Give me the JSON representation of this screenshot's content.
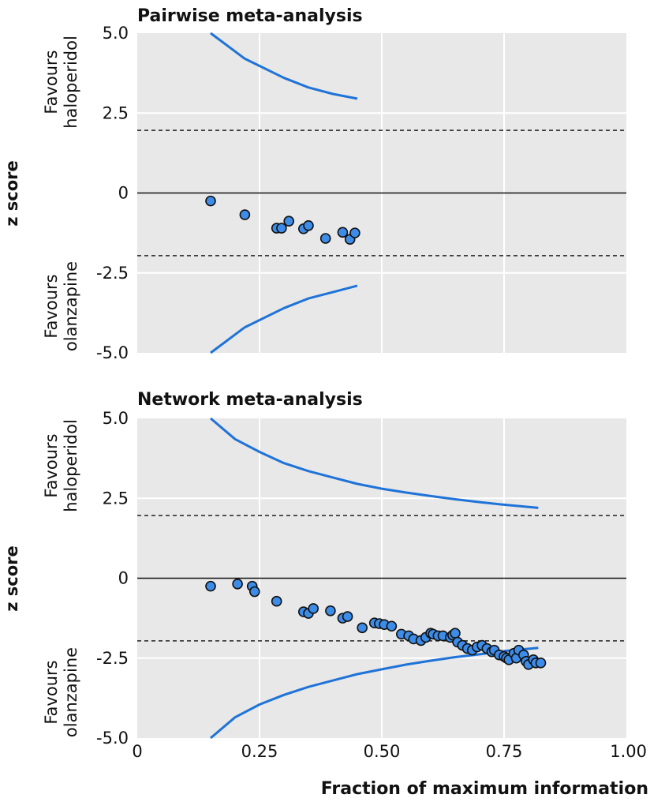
{
  "chart_data": [
    {
      "type": "scatter",
      "title": "Pairwise meta-analysis",
      "ylabel": "z score",
      "upper_annotation": [
        "Favours",
        "haloperidol"
      ],
      "lower_annotation": [
        "Favours",
        "olanzapine"
      ],
      "ylim": [
        -5.0,
        5.0
      ],
      "xlim": [
        0,
        1.0
      ],
      "y_ticks": [
        5.0,
        2.5,
        0,
        -2.5,
        -5.0
      ],
      "y_tick_labels": [
        "5.0",
        "2.5",
        "0",
        "-2.5",
        "-5.0"
      ],
      "x_ticks": [
        0,
        0.25,
        0.5,
        0.75,
        1.0
      ],
      "significance_lines": [
        1.96,
        -1.96
      ],
      "upper_boundary": {
        "x": [
          0.15,
          0.22,
          0.3,
          0.35,
          0.4,
          0.45
        ],
        "y": [
          5.0,
          4.2,
          3.6,
          3.3,
          3.1,
          2.95
        ]
      },
      "lower_boundary": {
        "x": [
          0.15,
          0.22,
          0.3,
          0.35,
          0.4,
          0.45
        ],
        "y": [
          -5.0,
          -4.2,
          -3.6,
          -3.3,
          -3.1,
          -2.9
        ]
      },
      "points": {
        "x": [
          0.15,
          0.22,
          0.285,
          0.295,
          0.31,
          0.34,
          0.35,
          0.385,
          0.42,
          0.435,
          0.445
        ],
        "y": [
          -0.25,
          -0.68,
          -1.1,
          -1.1,
          -0.88,
          -1.12,
          -1.02,
          -1.42,
          -1.23,
          -1.45,
          -1.25
        ]
      }
    },
    {
      "type": "scatter",
      "title": "Network meta-analysis",
      "ylabel": "z score",
      "xlabel": "Fraction of maximum information",
      "upper_annotation": [
        "Favours",
        "haloperidol"
      ],
      "lower_annotation": [
        "Favours",
        "olanzapine"
      ],
      "ylim": [
        -5.0,
        5.0
      ],
      "xlim": [
        0,
        1.0
      ],
      "y_ticks": [
        5.0,
        2.5,
        0,
        -2.5,
        -5.0
      ],
      "y_tick_labels": [
        "5.0",
        "2.5",
        "0",
        "-2.5",
        "-5.0"
      ],
      "x_ticks": [
        0,
        0.25,
        0.5,
        0.75,
        1.0
      ],
      "x_tick_labels": [
        "0",
        "0.25",
        "0.50",
        "0.75",
        "1.00"
      ],
      "significance_lines": [
        1.96,
        -1.96
      ],
      "upper_boundary": {
        "x": [
          0.15,
          0.2,
          0.25,
          0.3,
          0.35,
          0.4,
          0.45,
          0.5,
          0.55,
          0.6,
          0.65,
          0.7,
          0.75,
          0.82
        ],
        "y": [
          5.0,
          4.35,
          3.95,
          3.6,
          3.35,
          3.15,
          2.95,
          2.8,
          2.68,
          2.57,
          2.47,
          2.38,
          2.3,
          2.2
        ]
      },
      "lower_boundary": {
        "x": [
          0.15,
          0.2,
          0.25,
          0.3,
          0.35,
          0.4,
          0.45,
          0.5,
          0.55,
          0.6,
          0.65,
          0.7,
          0.75,
          0.82
        ],
        "y": [
          -5.0,
          -4.35,
          -3.95,
          -3.65,
          -3.4,
          -3.2,
          -3.0,
          -2.85,
          -2.7,
          -2.58,
          -2.47,
          -2.38,
          -2.28,
          -2.18
        ]
      },
      "points": {
        "x": [
          0.15,
          0.205,
          0.235,
          0.24,
          0.285,
          0.34,
          0.35,
          0.36,
          0.395,
          0.42,
          0.43,
          0.46,
          0.485,
          0.495,
          0.505,
          0.52,
          0.54,
          0.555,
          0.565,
          0.58,
          0.59,
          0.6,
          0.605,
          0.615,
          0.625,
          0.64,
          0.645,
          0.65,
          0.655,
          0.665,
          0.675,
          0.685,
          0.695,
          0.705,
          0.715,
          0.725,
          0.73,
          0.74,
          0.75,
          0.755,
          0.76,
          0.77,
          0.775,
          0.78,
          0.79,
          0.795,
          0.8,
          0.81,
          0.815,
          0.825
        ],
        "y": [
          -0.25,
          -0.18,
          -0.25,
          -0.42,
          -0.72,
          -1.05,
          -1.1,
          -0.95,
          -1.02,
          -1.25,
          -1.2,
          -1.55,
          -1.4,
          -1.42,
          -1.45,
          -1.5,
          -1.75,
          -1.8,
          -1.9,
          -1.95,
          -1.85,
          -1.72,
          -1.75,
          -1.8,
          -1.8,
          -1.85,
          -1.78,
          -1.72,
          -2.0,
          -2.1,
          -2.2,
          -2.25,
          -2.15,
          -2.1,
          -2.2,
          -2.3,
          -2.25,
          -2.4,
          -2.45,
          -2.5,
          -2.55,
          -2.35,
          -2.5,
          -2.25,
          -2.4,
          -2.6,
          -2.7,
          -2.55,
          -2.65,
          -2.65
        ]
      }
    }
  ]
}
